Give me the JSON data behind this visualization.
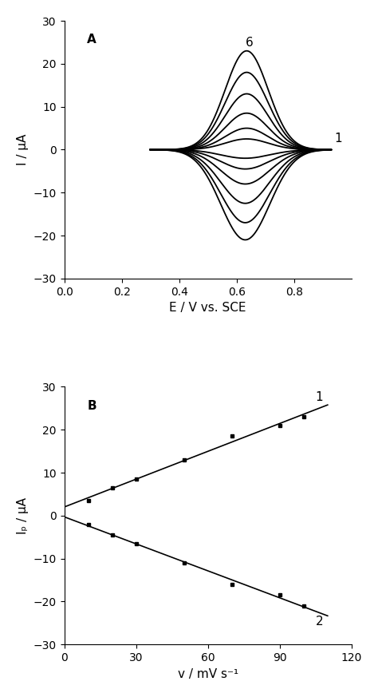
{
  "panel_A": {
    "label": "A",
    "xlabel": "E / V vs. SCE",
    "ylabel": "I / μA",
    "xlim": [
      0,
      1.0
    ],
    "ylim": [
      -30,
      30
    ],
    "xticks": [
      0,
      0.2,
      0.4,
      0.6,
      0.8
    ],
    "yticks": [
      -30,
      -20,
      -10,
      0,
      10,
      20,
      30
    ],
    "label_6": "6",
    "label_1": "1",
    "num_curves": 6,
    "anodic_peaks": [
      2.5,
      5.0,
      8.5,
      13.0,
      18.0,
      23.0
    ],
    "cathodic_peaks": [
      -2.0,
      -4.5,
      -8.0,
      -12.5,
      -17.0,
      -21.0
    ],
    "anodic_peak_E": 0.635,
    "cathodic_peak_E": 0.63,
    "start_potential": 0.3,
    "end_potential": 0.93,
    "sigma_anodic": 0.075,
    "sigma_cathodic": 0.085
  },
  "panel_B": {
    "label": "B",
    "xlabel": "v / mV s⁻¹",
    "ylabel": "Iₚ / μA",
    "xlim": [
      0,
      120
    ],
    "ylim": [
      -30,
      30
    ],
    "xticks": [
      0,
      30,
      60,
      90,
      120
    ],
    "yticks": [
      -30,
      -20,
      -10,
      0,
      10,
      20,
      30
    ],
    "label_1": "1",
    "label_2": "2",
    "scan_rates": [
      10,
      20,
      50,
      100
    ],
    "anodic_currents": [
      3.5,
      6.5,
      13.0,
      23.0
    ],
    "cathodic_currents": [
      -2.0,
      -4.5,
      -11.0,
      -21.0
    ],
    "scan_rates_dense": [
      10,
      20,
      30,
      50,
      70,
      90,
      100
    ],
    "anodic_dense": [
      3.5,
      6.5,
      8.5,
      13.0,
      18.5,
      21.0,
      23.0
    ],
    "cathodic_dense": [
      -2.0,
      -4.5,
      -6.5,
      -11.0,
      -16.0,
      -18.5,
      -21.0
    ]
  },
  "line_color": "#000000",
  "bg_color": "#ffffff",
  "fontsize_label": 11,
  "fontsize_tick": 10,
  "fontsize_annotation": 11
}
